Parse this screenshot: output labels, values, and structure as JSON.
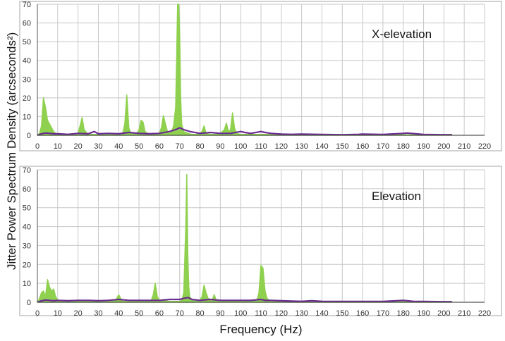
{
  "figure": {
    "ylabel": "Jitter Power Spectrum Density (arcseconds²)",
    "xlabel": "Frequency (Hz)"
  },
  "chart_data": [
    {
      "type": "line",
      "annotation": "X-elevation",
      "xlim": [
        0,
        220
      ],
      "ylim": [
        0,
        70
      ],
      "xticks": [
        0,
        10,
        20,
        30,
        40,
        50,
        60,
        70,
        80,
        90,
        100,
        110,
        120,
        130,
        140,
        150,
        160,
        170,
        180,
        190,
        200,
        210,
        220
      ],
      "yticks": [
        0,
        10,
        20,
        30,
        40,
        50,
        60,
        70
      ],
      "grid": true,
      "series": [
        {
          "color": "#8fd14f",
          "x": [
            0,
            1,
            2,
            3,
            4,
            5,
            6,
            7,
            8,
            9,
            10,
            12,
            15,
            18,
            20,
            21,
            22,
            23,
            25,
            30,
            35,
            40,
            42,
            43,
            44,
            45,
            46,
            48,
            49,
            50,
            51,
            52,
            53,
            55,
            58,
            60,
            61,
            62,
            63,
            64,
            65,
            66,
            67,
            68,
            68.5,
            69,
            69.5,
            70,
            70.5,
            71,
            72,
            74,
            76,
            78,
            80,
            81,
            82,
            83,
            85,
            88,
            90,
            92,
            93,
            94,
            95,
            96,
            97,
            98,
            100,
            105,
            110,
            120,
            130,
            140,
            150,
            160,
            170,
            180,
            190,
            200,
            204
          ],
          "y": [
            0,
            1,
            5,
            20,
            15,
            8,
            6,
            4,
            2,
            1,
            0.5,
            0.5,
            0.5,
            0.5,
            1,
            5,
            9.5,
            3,
            0.5,
            0.5,
            0.5,
            0.5,
            1,
            6,
            21.5,
            4,
            1,
            0.5,
            1,
            3,
            8,
            7,
            2,
            0.5,
            0.5,
            1,
            4,
            10.5,
            6,
            2,
            1,
            2,
            5,
            15,
            40,
            70,
            70,
            55,
            20,
            6,
            2,
            1,
            0.5,
            0.5,
            1,
            2,
            5,
            1,
            0.5,
            0.5,
            1,
            3,
            6.5,
            2,
            3,
            12,
            4,
            1,
            0.5,
            0.5,
            0.5,
            0.5,
            0.5,
            0.3,
            0.3,
            0.3,
            0.3,
            0.3,
            0.3,
            0.3,
            0.2
          ]
        },
        {
          "color": "#6a2c91",
          "x": [
            0,
            2,
            4,
            6,
            8,
            10,
            15,
            20,
            25,
            28,
            30,
            35,
            40,
            45,
            50,
            55,
            60,
            65,
            68,
            70,
            72,
            75,
            80,
            85,
            90,
            95,
            100,
            102,
            105,
            110,
            112,
            115,
            120,
            125,
            130,
            140,
            150,
            158,
            160,
            170,
            180,
            182,
            190,
            200,
            204
          ],
          "y": [
            0,
            0.8,
            1.2,
            1,
            0.8,
            0.8,
            0.5,
            1,
            0.8,
            2,
            0.8,
            1,
            0.8,
            1.5,
            1,
            0.8,
            1,
            2,
            3,
            4,
            3,
            2,
            1,
            1.5,
            1,
            1,
            2,
            1.5,
            1,
            2,
            1.5,
            1,
            0.6,
            0.5,
            0.6,
            0.4,
            0.3,
            0.5,
            0.6,
            0.4,
            1,
            1.2,
            0.4,
            0.3,
            0.3
          ]
        }
      ]
    },
    {
      "type": "line",
      "annotation": "Elevation",
      "xlim": [
        0,
        220
      ],
      "ylim": [
        0,
        70
      ],
      "xticks": [
        0,
        10,
        20,
        30,
        40,
        50,
        60,
        70,
        80,
        90,
        100,
        110,
        120,
        130,
        140,
        150,
        160,
        170,
        180,
        190,
        200,
        210,
        220
      ],
      "yticks": [
        0,
        10,
        20,
        30,
        40,
        50,
        60,
        70
      ],
      "grid": true,
      "series": [
        {
          "color": "#8fd14f",
          "x": [
            0,
            1,
            2,
            3,
            4,
            5,
            6,
            7,
            8,
            9,
            10,
            12,
            15,
            20,
            25,
            30,
            35,
            38,
            39,
            40,
            41,
            42,
            45,
            50,
            55,
            56,
            57,
            58,
            59,
            60,
            65,
            70,
            71,
            72,
            73,
            73.5,
            74,
            74.5,
            75,
            76,
            78,
            80,
            81,
            82,
            83,
            84,
            86,
            87,
            88,
            90,
            95,
            100,
            105,
            108,
            109,
            110,
            111,
            112,
            113,
            115,
            120,
            130,
            140,
            150,
            160,
            170,
            180,
            190,
            200,
            204
          ],
          "y": [
            0,
            2,
            5,
            6,
            3,
            12,
            8,
            6,
            7,
            3,
            1,
            0.5,
            0.5,
            0.5,
            0.5,
            0.5,
            0.5,
            0.8,
            2,
            4,
            2,
            0.5,
            0.5,
            0.5,
            0.5,
            1,
            4,
            10,
            3,
            1,
            0.5,
            0.5,
            1,
            5,
            40,
            67.5,
            25,
            8,
            3,
            1,
            0.5,
            1,
            3,
            9,
            5,
            2,
            1,
            4,
            1,
            0.5,
            0.5,
            0.5,
            0.5,
            1,
            5,
            19.5,
            18,
            6,
            2,
            0.5,
            0.3,
            0.3,
            0.3,
            0.3,
            0.3,
            0.3,
            0.3,
            0.3,
            0.2,
            0.2
          ]
        },
        {
          "color": "#6a2c91",
          "x": [
            0,
            2,
            4,
            6,
            8,
            10,
            15,
            20,
            25,
            30,
            35,
            40,
            45,
            50,
            55,
            60,
            65,
            70,
            72,
            74,
            76,
            80,
            85,
            90,
            95,
            100,
            105,
            110,
            112,
            115,
            120,
            125,
            130,
            135,
            140,
            150,
            160,
            170,
            180,
            185,
            190,
            200,
            204
          ],
          "y": [
            0,
            0.8,
            1.2,
            1,
            0.8,
            1,
            0.8,
            1,
            1,
            0.8,
            1,
            1.5,
            1,
            1,
            1,
            1,
            1.5,
            1.5,
            2,
            2.5,
            1.5,
            1,
            1.5,
            1,
            1,
            1,
            1,
            1.5,
            1,
            1,
            0.8,
            0.6,
            0.5,
            0.8,
            0.5,
            0.4,
            0.4,
            0.4,
            1,
            0.5,
            0.4,
            0.3,
            0.3
          ]
        }
      ]
    }
  ]
}
